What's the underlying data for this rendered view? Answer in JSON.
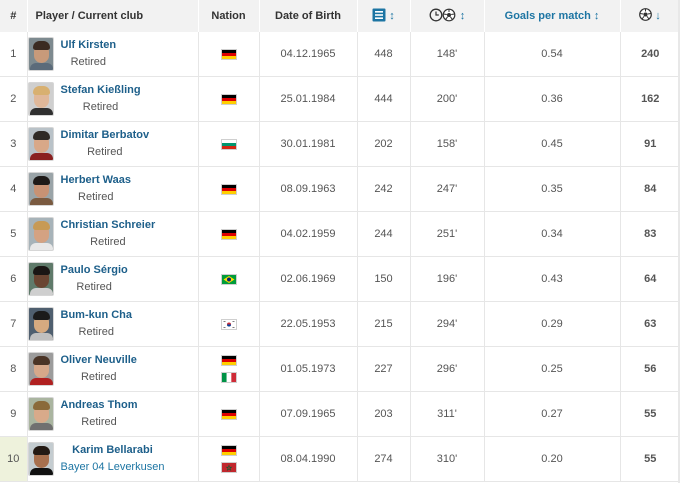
{
  "header": {
    "num": "#",
    "player": "Player / Current club",
    "nation": "Nation",
    "dob": "Date of Birth",
    "appearances_icon": "appearances-icon",
    "minutes_goal_icon": "minutes-per-goal-icon",
    "goals_per_match": "Goals per match",
    "goals_icon": "goals-icon",
    "sort_glyph": "↕",
    "sort_desc_glyph": "↓"
  },
  "rows": [
    {
      "rank": "1",
      "name": "Ulf Kirsten",
      "club": "Retired",
      "nations": [
        "germany"
      ],
      "dob": "04.12.1965",
      "apps": "448",
      "mpg": "148'",
      "gpm": "0.54",
      "goals": "240"
    },
    {
      "rank": "2",
      "name": "Stefan Kießling",
      "club": "Retired",
      "nations": [
        "germany"
      ],
      "dob": "25.01.1984",
      "apps": "444",
      "mpg": "200'",
      "gpm": "0.36",
      "goals": "162"
    },
    {
      "rank": "3",
      "name": "Dimitar Berbatov",
      "club": "Retired",
      "nations": [
        "bulgaria"
      ],
      "dob": "30.01.1981",
      "apps": "202",
      "mpg": "158'",
      "gpm": "0.45",
      "goals": "91"
    },
    {
      "rank": "4",
      "name": "Herbert Waas",
      "club": "Retired",
      "nations": [
        "germany"
      ],
      "dob": "08.09.1963",
      "apps": "242",
      "mpg": "247'",
      "gpm": "0.35",
      "goals": "84"
    },
    {
      "rank": "5",
      "name": "Christian Schreier",
      "club": "Retired",
      "nations": [
        "germany"
      ],
      "dob": "04.02.1959",
      "apps": "244",
      "mpg": "251'",
      "gpm": "0.34",
      "goals": "83"
    },
    {
      "rank": "6",
      "name": "Paulo Sérgio",
      "club": "Retired",
      "nations": [
        "brazil"
      ],
      "dob": "02.06.1969",
      "apps": "150",
      "mpg": "196'",
      "gpm": "0.43",
      "goals": "64"
    },
    {
      "rank": "7",
      "name": "Bum-kun Cha",
      "club": "Retired",
      "nations": [
        "korea"
      ],
      "dob": "22.05.1953",
      "apps": "215",
      "mpg": "294'",
      "gpm": "0.29",
      "goals": "63"
    },
    {
      "rank": "8",
      "name": "Oliver Neuville",
      "club": "Retired",
      "nations": [
        "germany",
        "italy"
      ],
      "dob": "01.05.1973",
      "apps": "227",
      "mpg": "296'",
      "gpm": "0.25",
      "goals": "56"
    },
    {
      "rank": "9",
      "name": "Andreas Thom",
      "club": "Retired",
      "nations": [
        "germany"
      ],
      "dob": "07.09.1965",
      "apps": "203",
      "mpg": "311'",
      "gpm": "0.27",
      "goals": "55"
    },
    {
      "rank": "10",
      "name": "Karim Bellarabi",
      "club": "Bayer 04 Leverkusen",
      "nations": [
        "germany",
        "morocco"
      ],
      "dob": "08.04.1990",
      "apps": "274",
      "mpg": "310'",
      "gpm": "0.20",
      "goals": "55"
    }
  ],
  "colors": {
    "accent": "#1d75a3",
    "name": "#1d5f8a",
    "header_bg": "#f2f2f2",
    "highlight_rank": "#eef2dc"
  }
}
